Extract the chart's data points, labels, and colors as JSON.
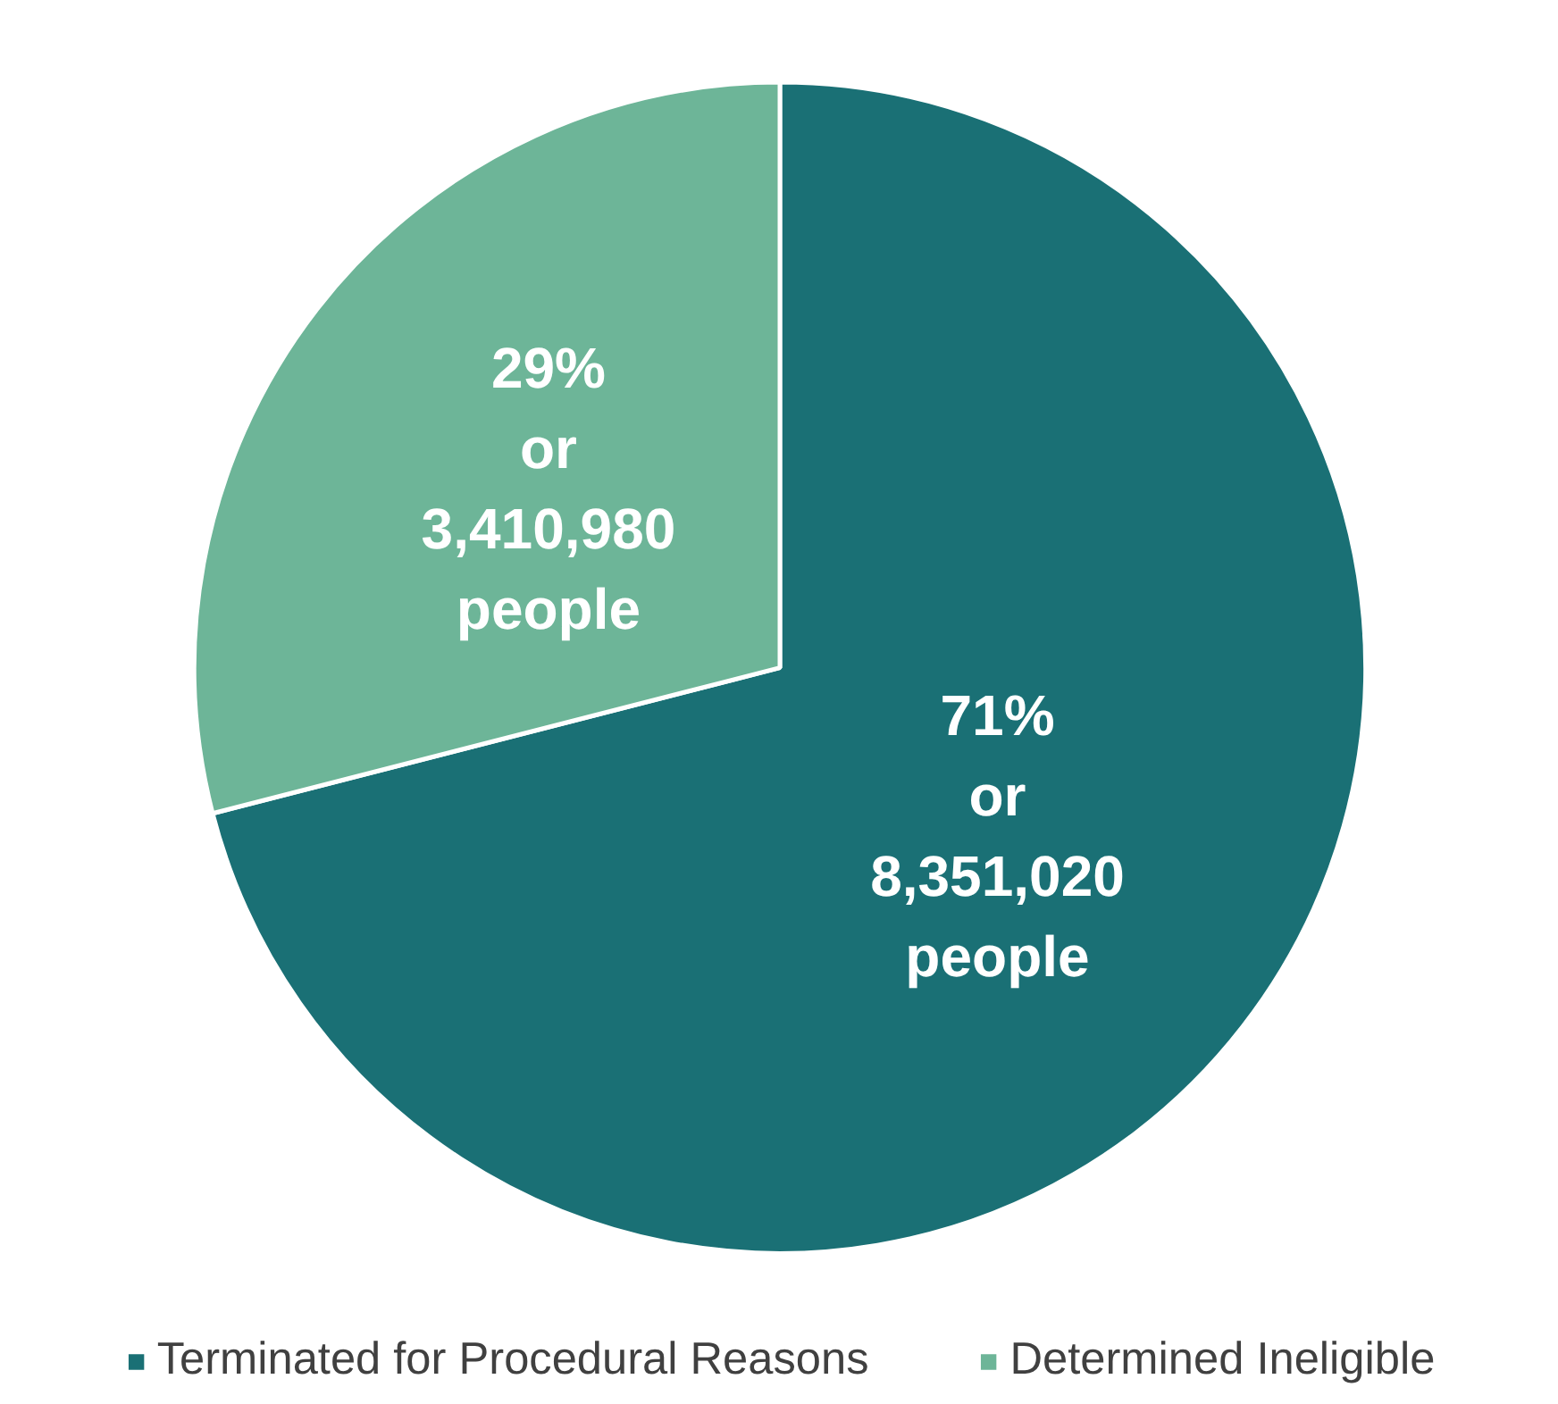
{
  "chart_data": {
    "type": "pie",
    "categories": [
      "Terminated for Procedural Reasons",
      "Determined Ineligible"
    ],
    "values": [
      8351020,
      3410980
    ],
    "colors": [
      "#1a7075",
      "#6db598"
    ],
    "value_labels": [
      "71%\nor\n8,351,020\npeople",
      "29%\nor\n3,410,980\npeople"
    ],
    "legend": "bottom"
  }
}
